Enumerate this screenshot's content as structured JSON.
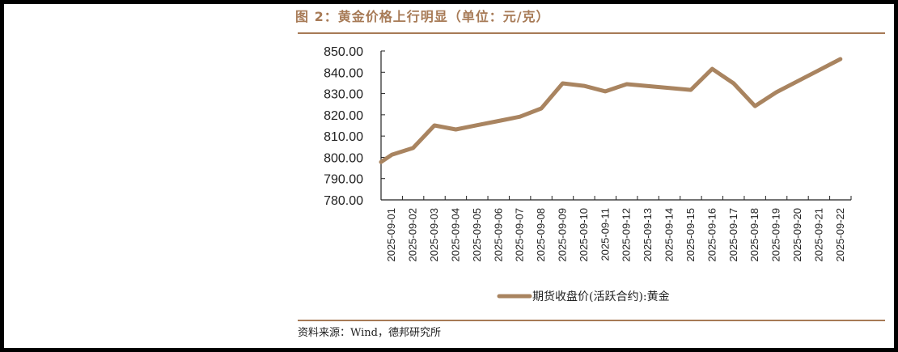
{
  "figure": {
    "title": "图 2：黄金价格上行明显（单位：元/克）",
    "source": "资料来源：Wind，德邦研究所"
  },
  "colors": {
    "accent": "#a77a56",
    "line": "#a98460",
    "axis": "#222222"
  },
  "chart_data": {
    "type": "line",
    "title": "黄金价格上行明显（单位：元/克）",
    "xlabel": "",
    "ylabel": "",
    "ylim": [
      780,
      850
    ],
    "yticks": [
      "850.00",
      "840.00",
      "830.00",
      "820.00",
      "810.00",
      "800.00",
      "790.00",
      "780.00"
    ],
    "grid": false,
    "legend_position": "bottom",
    "categories": [
      "2025-09-01",
      "2025-09-02",
      "2025-09-03",
      "2025-09-04",
      "2025-09-05",
      "2025-09-06",
      "2025-09-07",
      "2025-09-08",
      "2025-09-09",
      "2025-09-10",
      "2025-09-11",
      "2025-09-12",
      "2025-09-13",
      "2025-09-14",
      "2025-09-15",
      "2025-09-16",
      "2025-09-17",
      "2025-09-18",
      "2025-09-19",
      "2025-09-20",
      "2025-09-21",
      "2025-09-22"
    ],
    "series": [
      {
        "name": "期货收盘价(活跃合约):黄金",
        "values": [
          801.2,
          804.4,
          815.0,
          813.1,
          815.1,
          817.1,
          819.1,
          823.0,
          834.8,
          833.6,
          831.0,
          834.4,
          833.5,
          832.6,
          831.7,
          841.6,
          834.8,
          824.1,
          830.6,
          835.8,
          841.0,
          846.2
        ]
      }
    ]
  }
}
